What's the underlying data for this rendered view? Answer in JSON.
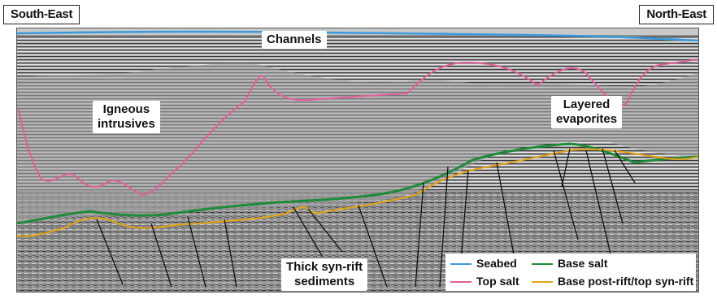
{
  "direction_labels": {
    "left": "South-East",
    "right": "North-East"
  },
  "annotations": {
    "channels": "Channels",
    "igneous": [
      "Igneous",
      "intrusives"
    ],
    "layered": [
      "Layered",
      "evaporites"
    ],
    "thick": [
      "Thick syn-rift",
      "sediments"
    ]
  },
  "legend": [
    {
      "label": "Seabed",
      "color": "#3a9bdc"
    },
    {
      "label": "Top salt",
      "color": "#e0609a"
    },
    {
      "label": "Base salt",
      "color": "#1f8a3a"
    },
    {
      "label": "Base post-rift/top syn-rift",
      "color": "#e3a316"
    }
  ]
}
